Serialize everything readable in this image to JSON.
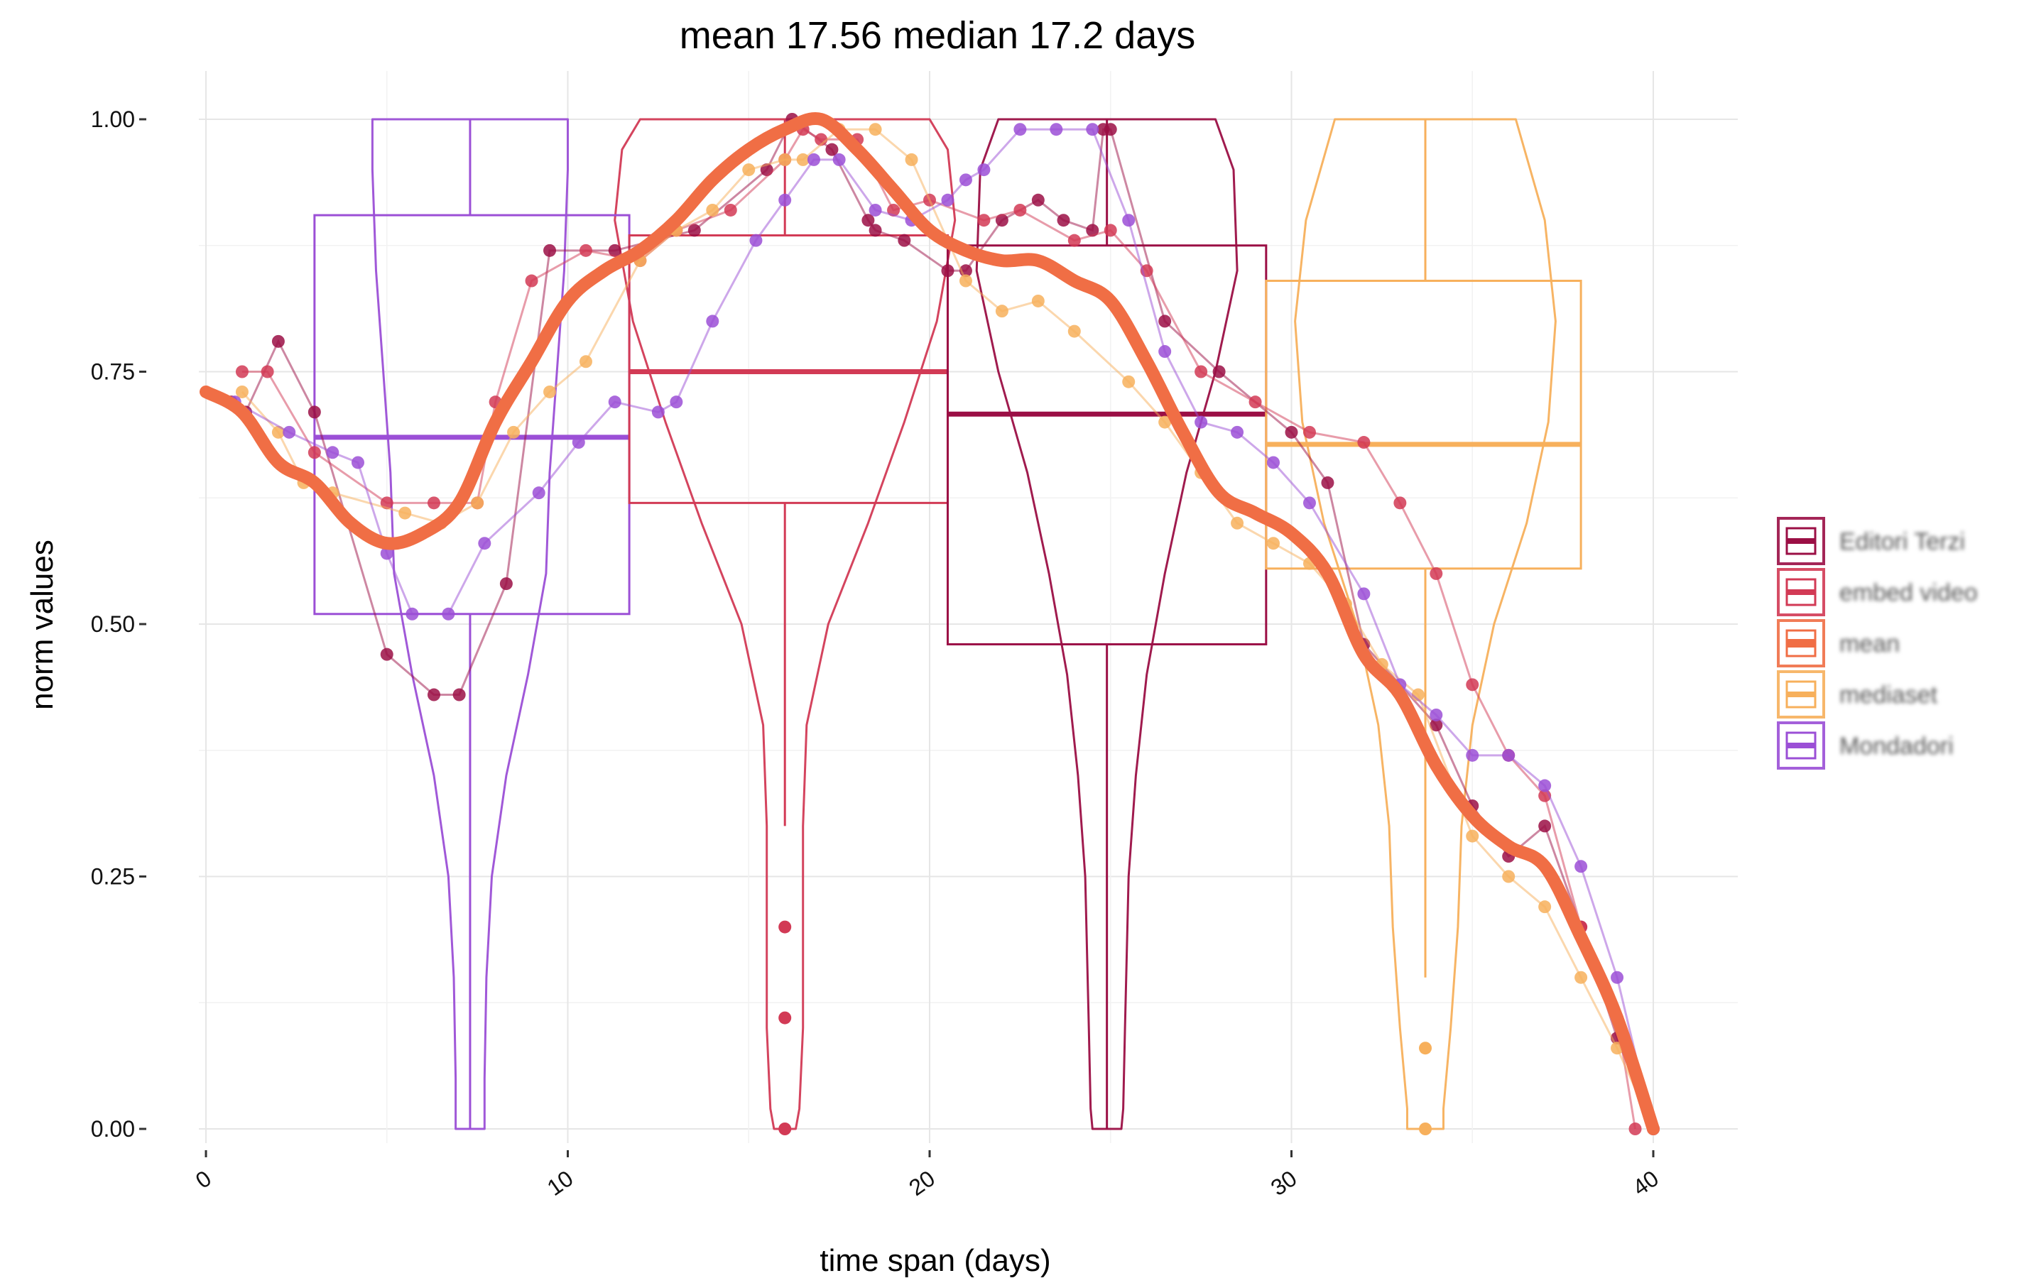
{
  "chart_data": {
    "type": "line",
    "title": "mean 17.56 median 17.2 days",
    "xlabel": "time span (days)",
    "ylabel": "norm values",
    "xlim": [
      0,
      42
    ],
    "ylim": [
      0,
      1
    ],
    "x_ticks": [
      0,
      10,
      20,
      30,
      40
    ],
    "x_tick_labels": [
      "0",
      "10",
      "20",
      "30",
      "40"
    ],
    "y_ticks": [
      0,
      0.25,
      0.5,
      0.75,
      1.0
    ],
    "y_tick_labels": [
      "0.00",
      "0.25",
      "0.50",
      "0.75",
      "1.00"
    ],
    "grid": true,
    "legend_position": "right",
    "colors": {
      "editori": "#9b0f45",
      "embed": "#d23a55",
      "mean": "#f06e45",
      "mediaset": "#f7b05c",
      "mondadori": "#9b4fd6",
      "grid": "#ececec"
    },
    "legend": [
      {
        "key": "editori",
        "name": "Editori Terzi"
      },
      {
        "key": "embed",
        "name": "embed video"
      },
      {
        "key": "mean",
        "name": "mean"
      },
      {
        "key": "mediaset",
        "name": "mediaset"
      },
      {
        "key": "mondadori",
        "name": "Mondadori"
      }
    ],
    "series": [
      {
        "key": "editori",
        "x": [
          0.7,
          1.1,
          2.0,
          3.0,
          5.0,
          6.3,
          7.0,
          8.3,
          9.5,
          11.3,
          13.5,
          15.5,
          16.2,
          17.3,
          18.3,
          18.5,
          19.3,
          20.5,
          21.0,
          22.0,
          23.0,
          23.7,
          24.5,
          24.8,
          25.0,
          26.5,
          28.0,
          30.0,
          31.0,
          32.0,
          34.0,
          35.0,
          36.0,
          37.0,
          38.0,
          39.0,
          40.0
        ],
        "y": [
          0.72,
          0.71,
          0.78,
          0.71,
          0.47,
          0.43,
          0.43,
          0.54,
          0.87,
          0.87,
          0.89,
          0.95,
          1.0,
          0.97,
          0.9,
          0.89,
          0.88,
          0.85,
          0.85,
          0.9,
          0.92,
          0.9,
          0.89,
          0.99,
          0.99,
          0.8,
          0.75,
          0.69,
          0.64,
          0.48,
          0.4,
          0.32,
          0.27,
          0.3,
          0.2,
          0.09,
          0.0
        ]
      },
      {
        "key": "embed",
        "x": [
          1.0,
          1.7,
          3.0,
          5.0,
          6.3,
          7.5,
          8.0,
          9.0,
          10.5,
          12.0,
          13.0,
          14.5,
          16.0,
          16.5,
          17.0,
          18.0,
          19.0,
          20.0,
          21.5,
          22.5,
          24.0,
          25.0,
          26.0,
          27.5,
          29.0,
          30.5,
          32.0,
          33.0,
          34.0,
          35.0,
          36.0,
          37.0,
          38.0,
          39.0,
          39.5
        ],
        "y": [
          0.75,
          0.75,
          0.67,
          0.62,
          0.62,
          0.62,
          0.72,
          0.84,
          0.87,
          0.86,
          0.89,
          0.91,
          0.96,
          0.99,
          0.98,
          0.98,
          0.91,
          0.92,
          0.9,
          0.91,
          0.88,
          0.89,
          0.85,
          0.75,
          0.72,
          0.69,
          0.68,
          0.62,
          0.55,
          0.44,
          0.37,
          0.33,
          0.2,
          0.11,
          0.0
        ]
      },
      {
        "key": "mediaset",
        "x": [
          1.0,
          2.0,
          2.7,
          3.5,
          5.5,
          6.5,
          7.5,
          8.5,
          9.5,
          10.5,
          12.0,
          13.0,
          14.0,
          15.0,
          16.0,
          16.5,
          17.5,
          18.5,
          19.5,
          21.0,
          22.0,
          23.0,
          24.0,
          25.5,
          26.5,
          27.5,
          28.5,
          29.5,
          30.5,
          31.5,
          32.5,
          33.5,
          35.0,
          36.0,
          37.0,
          38.0,
          39.0,
          40.0
        ],
        "y": [
          0.73,
          0.69,
          0.64,
          0.63,
          0.61,
          0.6,
          0.62,
          0.69,
          0.73,
          0.76,
          0.86,
          0.89,
          0.91,
          0.95,
          0.96,
          0.96,
          0.99,
          0.99,
          0.96,
          0.84,
          0.81,
          0.82,
          0.79,
          0.74,
          0.7,
          0.65,
          0.6,
          0.58,
          0.56,
          0.52,
          0.46,
          0.43,
          0.29,
          0.25,
          0.22,
          0.15,
          0.08,
          0.0
        ]
      },
      {
        "key": "mondadori",
        "x": [
          0.8,
          2.3,
          3.5,
          4.2,
          5.0,
          5.7,
          6.7,
          7.7,
          9.2,
          10.3,
          11.3,
          12.5,
          13.0,
          14.0,
          15.2,
          16.0,
          16.8,
          17.5,
          18.5,
          19.5,
          20.5,
          21.0,
          21.5,
          22.5,
          23.5,
          24.5,
          25.5,
          26.5,
          27.5,
          28.5,
          29.5,
          30.5,
          32.0,
          33.0,
          34.0,
          35.0,
          36.0,
          37.0,
          38.0,
          39.0,
          40.0
        ],
        "y": [
          0.72,
          0.69,
          0.67,
          0.66,
          0.57,
          0.51,
          0.51,
          0.58,
          0.63,
          0.68,
          0.72,
          0.71,
          0.72,
          0.8,
          0.88,
          0.92,
          0.96,
          0.96,
          0.91,
          0.9,
          0.92,
          0.94,
          0.95,
          0.99,
          0.99,
          0.99,
          0.9,
          0.77,
          0.7,
          0.69,
          0.66,
          0.62,
          0.53,
          0.44,
          0.41,
          0.37,
          0.37,
          0.34,
          0.26,
          0.15,
          0.0
        ]
      },
      {
        "key": "mean",
        "x": [
          0,
          1,
          2,
          3,
          4,
          5,
          6,
          7,
          8,
          9,
          10,
          11,
          12,
          13,
          14,
          15,
          16,
          17,
          18,
          19,
          20,
          21,
          22,
          23,
          24,
          25,
          26,
          27,
          28,
          29,
          30,
          31,
          32,
          33,
          34,
          35,
          36,
          37,
          38,
          39,
          40
        ],
        "y": [
          0.73,
          0.71,
          0.66,
          0.64,
          0.6,
          0.58,
          0.59,
          0.62,
          0.7,
          0.76,
          0.82,
          0.85,
          0.87,
          0.9,
          0.94,
          0.97,
          0.99,
          1.0,
          0.97,
          0.93,
          0.89,
          0.87,
          0.86,
          0.86,
          0.84,
          0.82,
          0.76,
          0.69,
          0.63,
          0.61,
          0.59,
          0.55,
          0.47,
          0.43,
          0.36,
          0.31,
          0.28,
          0.26,
          0.19,
          0.11,
          0.0
        ]
      }
    ],
    "boxes": [
      {
        "key": "mondadori",
        "x_range": [
          3.0,
          11.7
        ],
        "q1": 0.51,
        "median": 0.685,
        "q3": 0.905,
        "whisker_low": 0.0,
        "whisker_high": 1.0,
        "center": 7.3
      },
      {
        "key": "embed",
        "x_range": [
          11.7,
          20.5
        ],
        "q1": 0.62,
        "median": 0.75,
        "q3": 0.885,
        "whisker_low": 0.3,
        "whisker_high": 1.0,
        "center": 16.0
      },
      {
        "key": "editori",
        "x_range": [
          20.5,
          29.3
        ],
        "q1": 0.48,
        "median": 0.708,
        "q3": 0.875,
        "whisker_low": 0.0,
        "whisker_high": 1.0,
        "center": 24.9
      },
      {
        "key": "mediaset",
        "x_range": [
          29.3,
          38.0
        ],
        "q1": 0.555,
        "median": 0.678,
        "q3": 0.84,
        "whisker_low": 0.15,
        "whisker_high": 1.0,
        "center": 33.7
      }
    ],
    "box_outliers": [
      {
        "key": "embed",
        "x": 16.0,
        "y": [
          0.2,
          0.11,
          0.0
        ]
      },
      {
        "key": "mediaset",
        "x": 33.7,
        "y": [
          0.08,
          0.0
        ]
      }
    ]
  }
}
